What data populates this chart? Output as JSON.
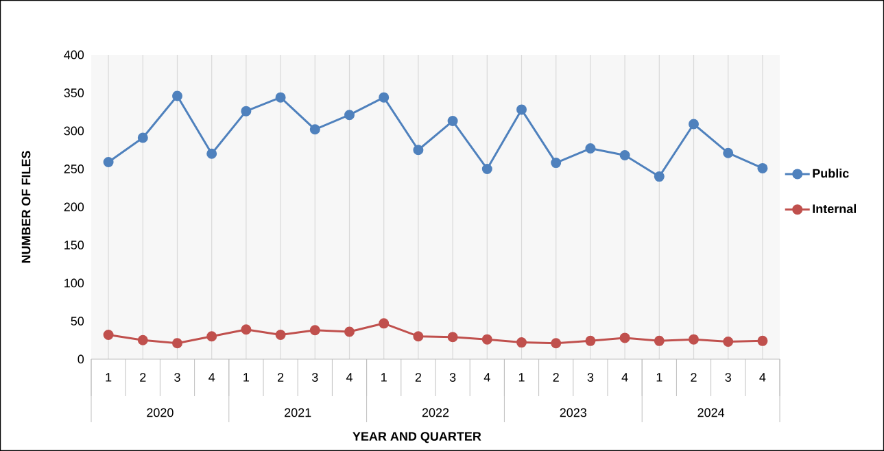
{
  "chart_data": {
    "type": "line",
    "xlabel": "YEAR AND QUARTER",
    "ylabel": "NUMBER OF FILES",
    "categories": [
      "1",
      "2",
      "3",
      "4",
      "1",
      "2",
      "3",
      "4",
      "1",
      "2",
      "3",
      "4",
      "1",
      "2",
      "3",
      "4",
      "1",
      "2",
      "3",
      "4"
    ],
    "annotations": [
      "2020",
      "2021",
      "2022",
      "2023",
      "2024"
    ],
    "series": [
      {
        "name": "Public",
        "color": "#4f81bd",
        "values": [
          259,
          291,
          346,
          270,
          326,
          344,
          302,
          321,
          344,
          275,
          313,
          250,
          328,
          258,
          277,
          268,
          240,
          309,
          271,
          251
        ]
      },
      {
        "name": "Internal",
        "color": "#c0504d",
        "values": [
          32,
          25,
          21,
          30,
          39,
          32,
          38,
          36,
          47,
          30,
          29,
          26,
          22,
          21,
          24,
          28,
          24,
          26,
          23,
          24
        ]
      }
    ],
    "ylim": [
      0,
      400
    ],
    "yticks": [
      0,
      50,
      100,
      150,
      200,
      250,
      300,
      350,
      400
    ],
    "grid": "x",
    "legend": "right",
    "marker": "circle",
    "line_style": "solid"
  }
}
